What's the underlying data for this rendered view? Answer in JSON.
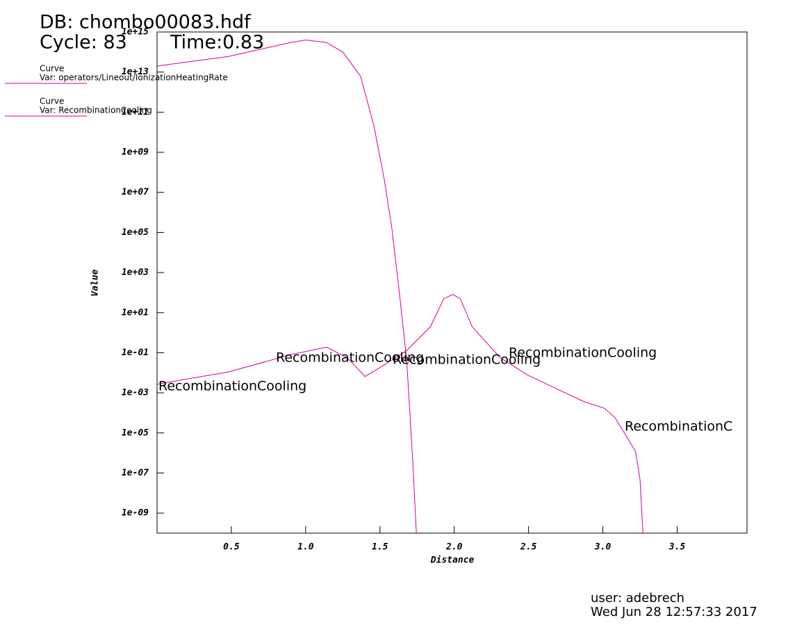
{
  "header": {
    "db": "DB: chombo00083.hdf",
    "cycle": "Cycle: 83",
    "time": "Time:0.83"
  },
  "chart_data": {
    "type": "line",
    "xlabel": "Distance",
    "ylabel": "Value",
    "log_y": true,
    "xlim": [
      0,
      3.97
    ],
    "ylim": [
      1e-10,
      1000000000000000.0
    ],
    "xticks": [
      0.5,
      {
        "value": 1,
        "label": "1.0"
      },
      1.5,
      {
        "value": 2,
        "label": "2.0"
      },
      2.5,
      {
        "value": 3,
        "label": "3.0"
      },
      3.5
    ],
    "yticks": [
      {
        "value": 1000000000000000.0,
        "label": "1e+15"
      },
      {
        "value": 10000000000000.0,
        "label": "1e+13"
      },
      {
        "value": 100000000000.0,
        "label": "1e+11"
      },
      {
        "value": 1000000000.0,
        "label": "1e+09"
      },
      {
        "value": 10000000.0,
        "label": "1e+07"
      },
      {
        "value": 100000.0,
        "label": "1e+05"
      },
      {
        "value": 1000.0,
        "label": "1e+03"
      },
      {
        "value": 10,
        "label": "1e+01"
      },
      {
        "value": 0.1,
        "label": "1e-01"
      },
      {
        "value": 0.001,
        "label": "1e-03"
      },
      {
        "value": 1e-05,
        "label": "1e-05"
      },
      {
        "value": 1e-07,
        "label": "1e-07"
      },
      {
        "value": 1e-09,
        "label": "1e-09"
      }
    ],
    "series": [
      {
        "legend_title": "Curve",
        "name": "Var: operators/Lineout/IonizationHeatingRate",
        "color": "#cc0099",
        "x": [
          0,
          0.48,
          0.9,
          1.0,
          1.14,
          1.25,
          1.37,
          1.46,
          1.53,
          1.58,
          1.63,
          1.68,
          1.72,
          1.745
        ],
        "values": [
          20000000000000.0,
          60000000000000.0,
          300000000000000.0,
          400000000000000.0,
          300000000000000.0,
          100000000000000.0,
          6000000000000.0,
          20000000000.0,
          40000000.0,
          160000.0,
          110,
          0.04,
          5e-07,
          1e-10
        ]
      },
      {
        "legend_title": "Curve",
        "name": "Var: RecombinationCooling",
        "color": "#cc0099",
        "x": [
          0,
          0.48,
          0.9,
          1.14,
          1.28,
          1.4,
          1.53,
          1.68,
          1.84,
          1.93,
          1.99,
          2.04,
          2.12,
          2.31,
          2.49,
          2.87,
          3.01,
          3.08,
          3.15,
          3.22,
          3.25,
          3.27
        ],
        "values": [
          0.0027,
          0.011,
          0.08,
          0.19,
          0.056,
          0.0065,
          0.025,
          0.13,
          2,
          50,
          80,
          50,
          2,
          0.056,
          0.008,
          0.00037,
          0.00017,
          6e-05,
          8.7e-06,
          1.2e-06,
          5e-08,
          1e-10
        ]
      }
    ],
    "annotations": [
      "RecombinationCooling",
      "RecombinationCooling",
      "RecombinationCooling",
      "RecombinationCooling",
      "RecombinationC"
    ],
    "annotation_color": "#e0007f"
  },
  "footer": {
    "user": "user: adebrech",
    "date": "Wed Jun 28 12:57:33 2017"
  }
}
